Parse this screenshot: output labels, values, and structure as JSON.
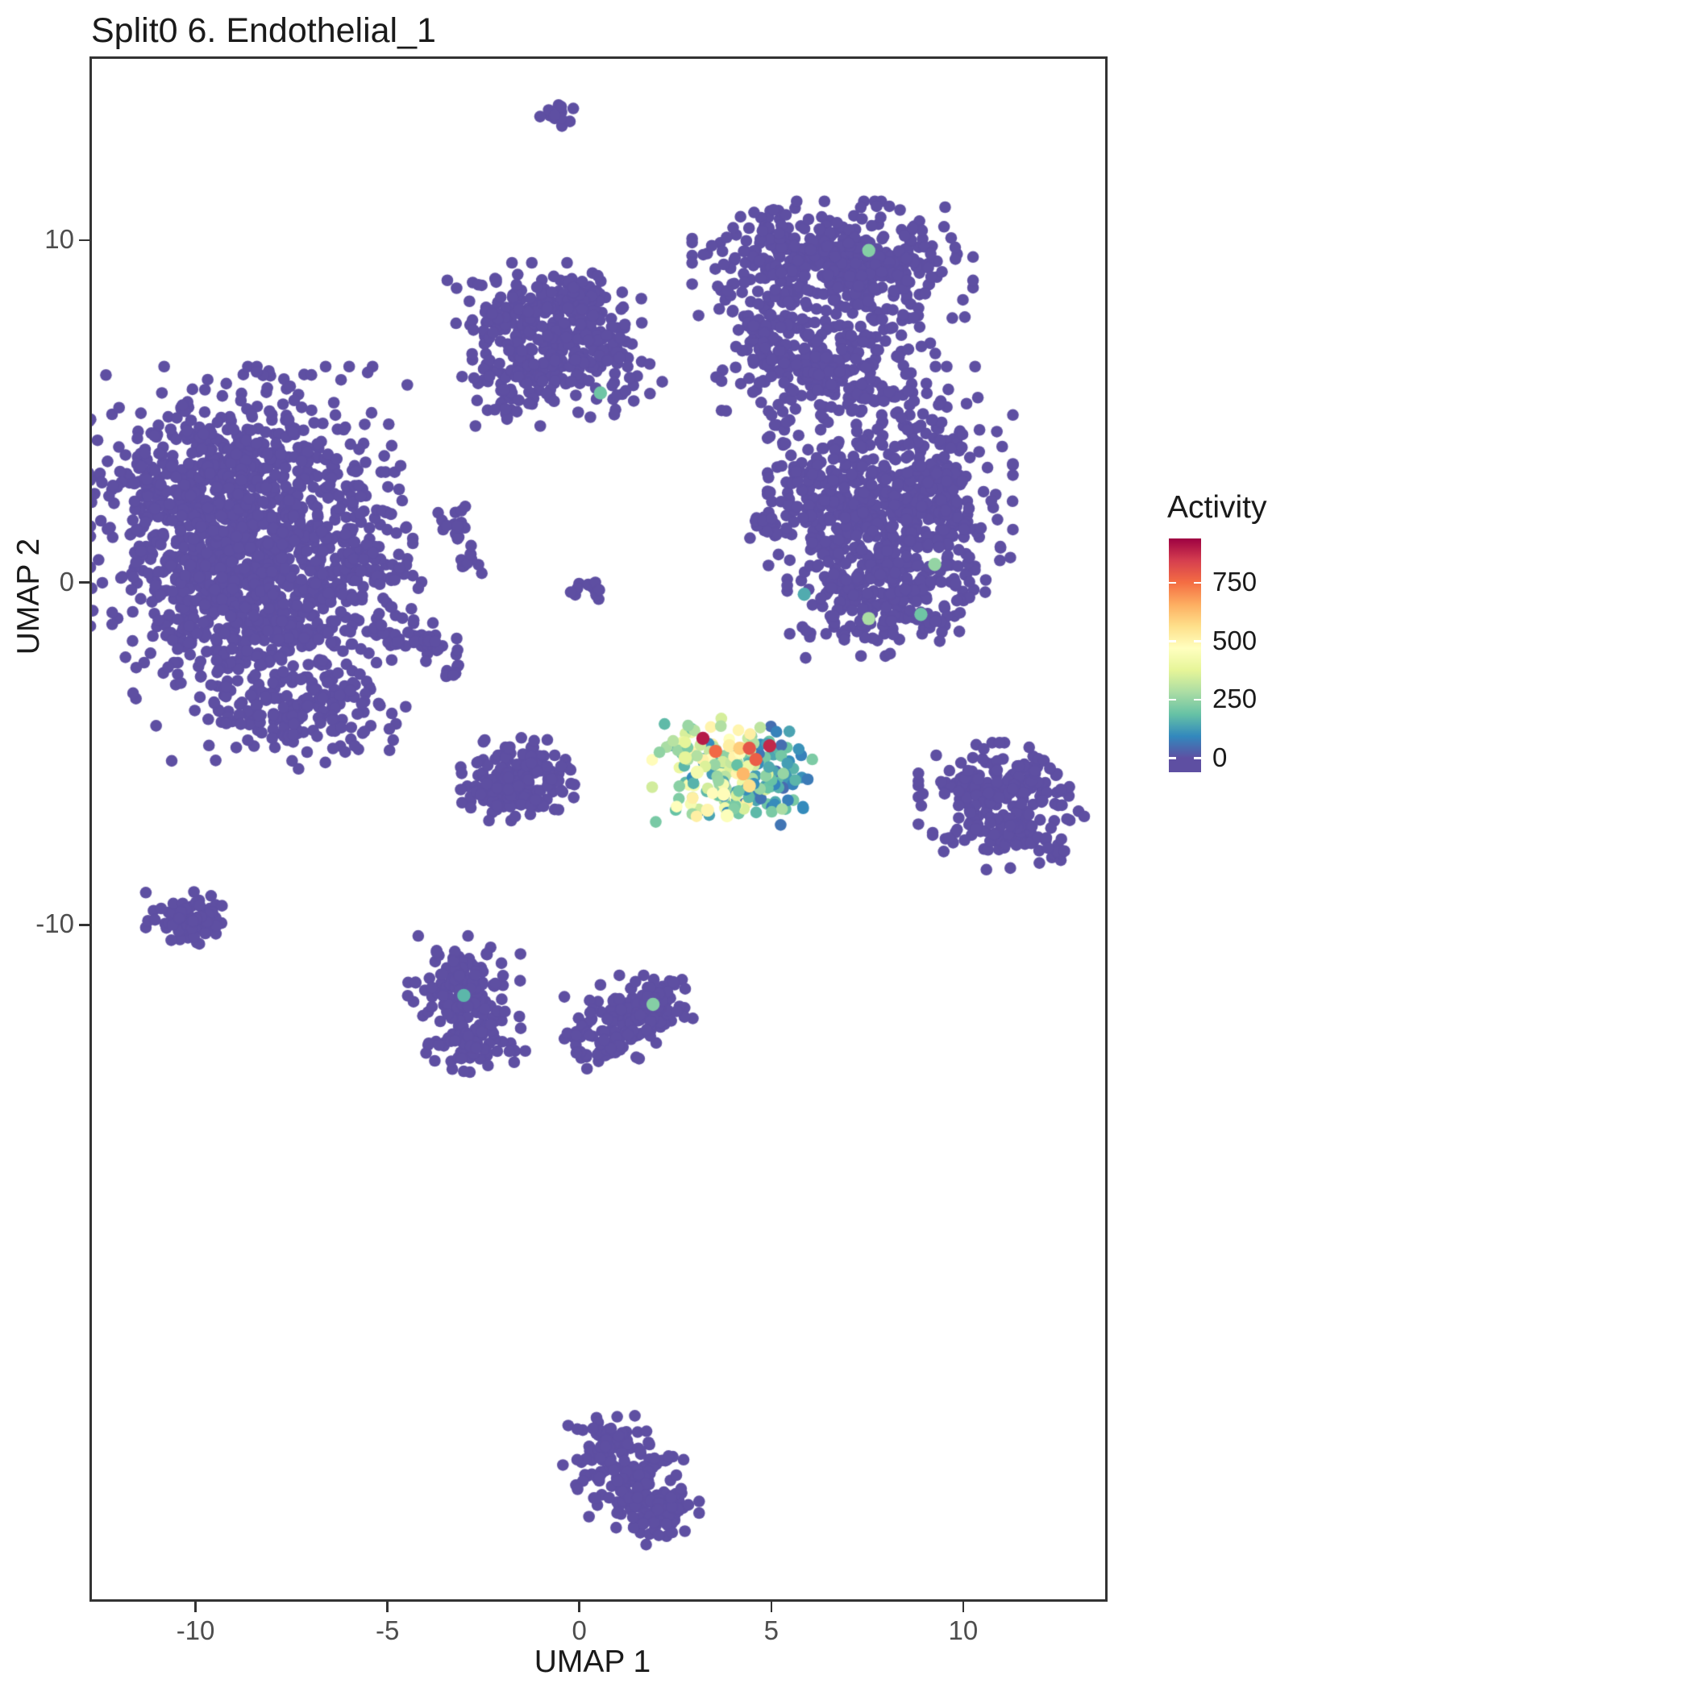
{
  "title": "Split0 6. Endothelial_1",
  "axes": {
    "x": {
      "label": "UMAP 1",
      "ticks": [
        -10,
        -5,
        0,
        5,
        10
      ]
    },
    "y": {
      "label": "UMAP 2",
      "ticks": [
        10,
        0,
        -10
      ]
    }
  },
  "legend": {
    "title": "Activity",
    "ticks": [
      750,
      500,
      250,
      0
    ],
    "limits": [
      -60,
      940
    ]
  },
  "colors": {
    "colormap": [
      "#5E4FA2",
      "#3288BD",
      "#66C2A5",
      "#ABDDA4",
      "#E6F598",
      "#FFFFBF",
      "#FEE08B",
      "#FDAE61",
      "#F46D43",
      "#D53E4F",
      "#9E0142"
    ],
    "background": "#FFFFFF",
    "panel_border": "#333333",
    "tick_text": "#4d4d4d",
    "base_point": "#5E4FA2"
  },
  "chart_data": {
    "type": "scatter",
    "title": "Split0 6. Endothelial_1",
    "xlabel": "UMAP 1",
    "ylabel": "UMAP 2",
    "xlim": [
      -12.7,
      13.7
    ],
    "ylim": [
      -29.7,
      15.3
    ],
    "grid": false,
    "legend_position": "right",
    "color_variable": "Activity",
    "color_limits": [
      0,
      940
    ],
    "clusters_format": "[center_x, center_y, sd_x, sd_y, n_points, activity_min?, activity_max?] ; activity defaults to 0",
    "clusters": [
      [
        -0.54,
        13.63,
        0.27,
        0.26,
        14
      ],
      [
        5.9,
        9.47,
        1.26,
        0.71,
        260
      ],
      [
        7.79,
        9.23,
        1.05,
        0.75,
        160
      ],
      [
        5.06,
        7.47,
        0.67,
        0.94,
        110
      ],
      [
        7.2,
        6.83,
        0.94,
        0.61,
        90
      ],
      [
        6.0,
        5.93,
        0.52,
        0.71,
        35
      ],
      [
        -1.23,
        7.58,
        0.94,
        0.75,
        160
      ],
      [
        0.28,
        6.83,
        0.8,
        0.85,
        130
      ],
      [
        -1.48,
        5.89,
        0.67,
        0.56,
        80
      ],
      [
        -0.39,
        8.29,
        0.63,
        0.35,
        50
      ],
      [
        7.16,
        5.47,
        1.47,
        0.59,
        90
      ],
      [
        9.42,
        3.82,
        0.59,
        1.06,
        80
      ],
      [
        8.1,
        1.7,
        1.36,
        1.36,
        520
      ],
      [
        6.15,
        2.69,
        0.52,
        0.94,
        60
      ],
      [
        7.79,
        -0.53,
        1.01,
        0.71,
        150
      ],
      [
        4.85,
        1.59,
        0.42,
        0.33,
        25
      ],
      [
        -8.78,
        2.88,
        1.89,
        1.46,
        650
      ],
      [
        -9.78,
        0.53,
        1.26,
        1.22,
        320
      ],
      [
        -7.48,
        0.01,
        1.09,
        1.18,
        260
      ],
      [
        -8.4,
        -2.34,
        1.47,
        1.22,
        260
      ],
      [
        -5.59,
        0.53,
        0.63,
        0.99,
        70
      ],
      [
        -6.85,
        -3.89,
        1.05,
        0.66,
        90
      ],
      [
        -3.33,
        1.66,
        0.27,
        0.24,
        16
      ],
      [
        -2.86,
        0.72,
        0.21,
        0.19,
        10
      ],
      [
        -4.33,
        -1.64,
        0.38,
        0.28,
        26
      ],
      [
        -3.6,
        -1.87,
        0.21,
        0.19,
        12
      ],
      [
        -3.2,
        -2.58,
        0.17,
        0.16,
        8
      ],
      [
        0.36,
        -0.34,
        0.27,
        0.19,
        12
      ],
      [
        -1.61,
        -5.73,
        0.63,
        0.52,
        190
      ],
      [
        10.55,
        -6.11,
        0.73,
        0.61,
        110
      ],
      [
        11.81,
        -5.87,
        0.55,
        0.47,
        60
      ],
      [
        11.18,
        -7.28,
        0.84,
        0.47,
        80
      ],
      [
        12.29,
        -7.89,
        0.25,
        0.24,
        12
      ],
      [
        -10.12,
        -9.82,
        0.5,
        0.35,
        85
      ],
      [
        -2.99,
        -11.99,
        0.63,
        0.71,
        150
      ],
      [
        -2.7,
        -13.4,
        0.55,
        0.47,
        70
      ],
      [
        1.64,
        -12.46,
        0.63,
        0.42,
        100
      ],
      [
        0.62,
        -13.37,
        0.55,
        0.38,
        60
      ],
      [
        2.17,
        -12.08,
        0.25,
        0.24,
        20
      ],
      [
        0.7,
        -25.26,
        0.48,
        0.47,
        75
      ],
      [
        1.33,
        -26.34,
        0.59,
        0.52,
        105
      ],
      [
        2.04,
        -27.18,
        0.46,
        0.4,
        60
      ],
      [
        5.1,
        -5.64,
        0.42,
        0.66,
        55,
        40,
        220
      ],
      [
        3.66,
        -5.64,
        0.75,
        0.71,
        150,
        80,
        520
      ]
    ],
    "singles": [
      [
        -0.39,
        -12.1
      ],
      [
        0.55,
        -11.75
      ],
      [
        0.2,
        -14.2
      ],
      [
        5.37,
        4.06
      ],
      [
        5.65,
        3.24
      ],
      [
        4.97,
        2.64
      ],
      [
        -5.6,
        -4.35
      ],
      [
        -4.85,
        -4.6
      ],
      [
        -6.1,
        -4.95
      ]
    ],
    "highlights_format": "[x, y, activity]",
    "highlights": [
      [
        7.54,
        9.7,
        230
      ],
      [
        0.55,
        5.54,
        200
      ],
      [
        7.54,
        -1.05,
        280
      ],
      [
        8.9,
        -0.93,
        200
      ],
      [
        5.86,
        -0.34,
        150
      ],
      [
        9.26,
        0.53,
        250
      ],
      [
        1.92,
        -12.32,
        230
      ],
      [
        -3.01,
        -12.06,
        170
      ],
      [
        2.76,
        -5.12,
        380
      ],
      [
        3.07,
        -5.54,
        430
      ],
      [
        3.85,
        -6.81,
        460
      ],
      [
        3.76,
        -6.18,
        480
      ],
      [
        3.34,
        -6.65,
        500
      ],
      [
        3.91,
        -4.77,
        520
      ],
      [
        4.43,
        -5.94,
        560
      ],
      [
        4.18,
        -4.84,
        600
      ],
      [
        4.27,
        -5.59,
        640
      ],
      [
        3.55,
        -4.93,
        760
      ],
      [
        4.6,
        -5.17,
        780
      ],
      [
        4.43,
        -4.84,
        800
      ],
      [
        4.96,
        -4.77,
        880
      ],
      [
        3.22,
        -4.55,
        900
      ]
    ]
  }
}
